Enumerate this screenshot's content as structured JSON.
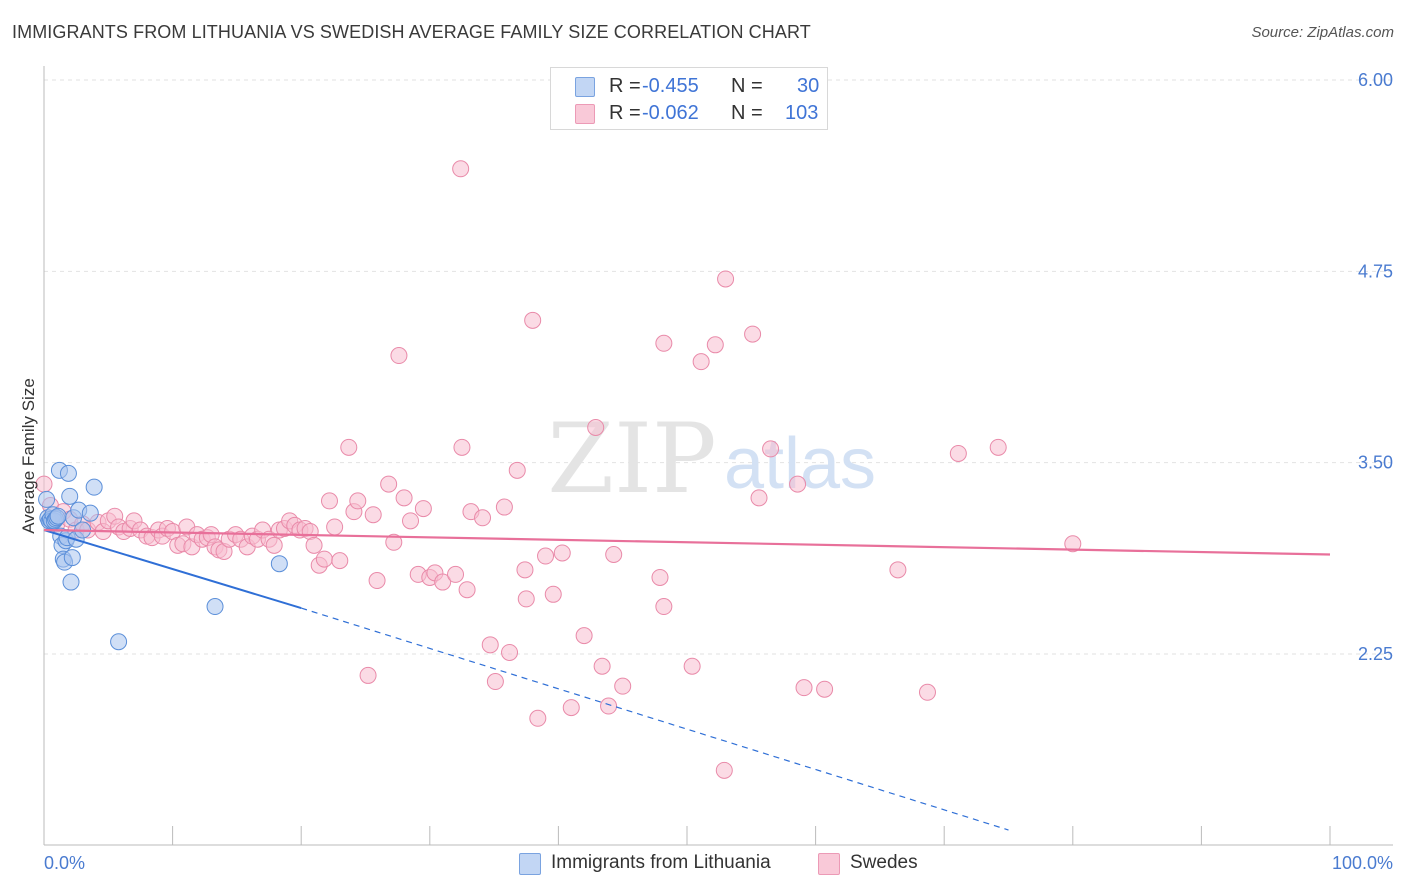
{
  "title": "IMMIGRANTS FROM LITHUANIA VS SWEDISH AVERAGE FAMILY SIZE CORRELATION CHART",
  "source": "Source: ZipAtlas.com",
  "watermark": {
    "zip": "ZIP",
    "atlas": "atlas"
  },
  "legend": {
    "series1": {
      "r_label": "R =",
      "r_value": "-0.455",
      "n_label": "N =",
      "n_value": "30"
    },
    "series2": {
      "r_label": "R =",
      "r_value": "-0.062",
      "n_label": "N =",
      "n_value": "103"
    }
  },
  "colors": {
    "blue_fill": "#a9c4ee",
    "blue_stroke": "#5b8fd9",
    "blue_line": "#2f6fd6",
    "pink_fill": "#f7bdd0",
    "pink_stroke": "#e98aa9",
    "pink_line": "#e8709a",
    "grid": "#e2e2e2",
    "axis_text": "#4a7bd0"
  },
  "chart_data": {
    "type": "scatter",
    "title": "IMMIGRANTS FROM LITHUANIA VS SWEDISH AVERAGE FAMILY SIZE CORRELATION CHART",
    "xlabel": "",
    "ylabel": "Average Family Size",
    "x_tick_labels": [
      "0.0%",
      "100.0%"
    ],
    "y_ticks": [
      2.25,
      3.5,
      4.75,
      6.0
    ],
    "y_tick_labels": [
      "2.25",
      "3.50",
      "4.75",
      "6.00"
    ],
    "xlim": [
      0,
      100
    ],
    "ylim": [
      1.1,
      6.2
    ],
    "grid": true,
    "legend_position": "top-center",
    "series": [
      {
        "name": "Immigrants from Lithuania",
        "r": -0.455,
        "n": 30,
        "trend": {
          "x0": 0,
          "y0": 3.06,
          "x1": 20,
          "y1": 2.55,
          "dash_to_x": 75,
          "dash_to_y": 1.1
        },
        "points": [
          [
            0.2,
            3.26
          ],
          [
            0.3,
            3.14
          ],
          [
            0.4,
            3.12
          ],
          [
            0.5,
            3.13
          ],
          [
            0.6,
            3.12
          ],
          [
            0.7,
            3.16
          ],
          [
            0.8,
            3.12
          ],
          [
            0.9,
            3.13
          ],
          [
            1.0,
            3.14
          ],
          [
            1.1,
            3.15
          ],
          [
            1.2,
            3.45
          ],
          [
            1.3,
            3.02
          ],
          [
            1.4,
            2.96
          ],
          [
            1.5,
            2.87
          ],
          [
            1.6,
            2.85
          ],
          [
            1.7,
            2.99
          ],
          [
            1.8,
            3.01
          ],
          [
            1.9,
            3.43
          ],
          [
            2.0,
            3.28
          ],
          [
            2.1,
            2.72
          ],
          [
            2.2,
            2.88
          ],
          [
            2.3,
            3.14
          ],
          [
            2.5,
            3.0
          ],
          [
            2.7,
            3.19
          ],
          [
            3.0,
            3.06
          ],
          [
            3.6,
            3.17
          ],
          [
            3.9,
            3.34
          ],
          [
            5.8,
            2.33
          ],
          [
            13.3,
            2.56
          ],
          [
            18.3,
            2.84
          ]
        ]
      },
      {
        "name": "Swedes",
        "r": -0.062,
        "n": 103,
        "trend": {
          "x0": 0,
          "y0": 3.06,
          "x1": 100,
          "y1": 2.9
        },
        "points": [
          [
            0.0,
            3.36
          ],
          [
            0.5,
            3.22
          ],
          [
            1.0,
            3.1
          ],
          [
            1.5,
            3.18
          ],
          [
            2.0,
            3.13
          ],
          [
            2.5,
            3.06
          ],
          [
            3.0,
            3.1
          ],
          [
            3.4,
            3.06
          ],
          [
            4.2,
            3.11
          ],
          [
            4.6,
            3.05
          ],
          [
            5.0,
            3.12
          ],
          [
            5.5,
            3.15
          ],
          [
            5.8,
            3.08
          ],
          [
            6.2,
            3.05
          ],
          [
            6.7,
            3.07
          ],
          [
            7.0,
            3.12
          ],
          [
            7.5,
            3.06
          ],
          [
            8.0,
            3.02
          ],
          [
            8.4,
            3.01
          ],
          [
            8.9,
            3.06
          ],
          [
            9.2,
            3.02
          ],
          [
            9.6,
            3.07
          ],
          [
            10.0,
            3.05
          ],
          [
            10.4,
            2.96
          ],
          [
            10.8,
            2.97
          ],
          [
            11.1,
            3.08
          ],
          [
            11.5,
            2.95
          ],
          [
            11.9,
            3.03
          ],
          [
            12.3,
            3.0
          ],
          [
            12.7,
            3.01
          ],
          [
            13.0,
            3.03
          ],
          [
            13.3,
            2.95
          ],
          [
            13.6,
            2.93
          ],
          [
            14.0,
            2.92
          ],
          [
            14.4,
            3.0
          ],
          [
            14.9,
            3.03
          ],
          [
            15.3,
            3.0
          ],
          [
            15.8,
            2.95
          ],
          [
            16.2,
            3.02
          ],
          [
            16.6,
            3.0
          ],
          [
            17.0,
            3.06
          ],
          [
            17.5,
            3.0
          ],
          [
            17.9,
            2.96
          ],
          [
            18.3,
            3.06
          ],
          [
            18.7,
            3.07
          ],
          [
            19.1,
            3.12
          ],
          [
            19.5,
            3.09
          ],
          [
            19.9,
            3.06
          ],
          [
            20.3,
            3.07
          ],
          [
            20.7,
            3.05
          ],
          [
            21.0,
            2.96
          ],
          [
            21.4,
            2.83
          ],
          [
            21.8,
            2.87
          ],
          [
            22.2,
            3.25
          ],
          [
            22.6,
            3.08
          ],
          [
            23.0,
            2.86
          ],
          [
            23.7,
            3.6
          ],
          [
            24.1,
            3.18
          ],
          [
            24.4,
            3.25
          ],
          [
            25.2,
            2.11
          ],
          [
            25.6,
            3.16
          ],
          [
            25.9,
            2.73
          ],
          [
            26.8,
            3.36
          ],
          [
            27.2,
            2.98
          ],
          [
            27.6,
            4.2
          ],
          [
            28.0,
            3.27
          ],
          [
            28.5,
            3.12
          ],
          [
            29.1,
            2.77
          ],
          [
            29.5,
            3.2
          ],
          [
            30.0,
            2.75
          ],
          [
            30.4,
            2.78
          ],
          [
            31.0,
            2.72
          ],
          [
            32.0,
            2.77
          ],
          [
            32.5,
            3.6
          ],
          [
            32.9,
            2.67
          ],
          [
            33.2,
            3.18
          ],
          [
            34.1,
            3.14
          ],
          [
            34.7,
            2.31
          ],
          [
            35.1,
            2.07
          ],
          [
            35.8,
            3.21
          ],
          [
            36.2,
            2.26
          ],
          [
            36.8,
            3.45
          ],
          [
            37.4,
            2.8
          ],
          [
            38.0,
            4.43
          ],
          [
            38.4,
            1.83
          ],
          [
            39.0,
            2.89
          ],
          [
            39.6,
            2.64
          ],
          [
            40.3,
            2.91
          ],
          [
            42.0,
            2.37
          ],
          [
            43.4,
            2.17
          ],
          [
            45.0,
            2.04
          ],
          [
            47.9,
            2.75
          ],
          [
            50.4,
            2.17
          ],
          [
            52.2,
            4.27
          ],
          [
            53.0,
            4.7
          ],
          [
            55.1,
            4.34
          ],
          [
            56.5,
            3.59
          ],
          [
            58.6,
            3.36
          ],
          [
            59.1,
            2.03
          ],
          [
            60.7,
            2.02
          ],
          [
            66.4,
            2.8
          ],
          [
            68.7,
            2.0
          ],
          [
            80.0,
            2.97
          ]
        ],
        "extra_points": [
          [
            32.4,
            5.42
          ],
          [
            41.0,
            1.9
          ],
          [
            48.2,
            4.28
          ],
          [
            43.9,
            1.91
          ],
          [
            51.1,
            4.16
          ],
          [
            42.9,
            3.73
          ],
          [
            52.9,
            1.49
          ],
          [
            55.6,
            3.27
          ],
          [
            71.1,
            3.56
          ],
          [
            74.2,
            3.6
          ],
          [
            37.5,
            2.61
          ],
          [
            44.3,
            2.9
          ],
          [
            48.2,
            2.56
          ]
        ]
      }
    ]
  },
  "bottom_legend": {
    "item1": "Immigrants from Lithuania",
    "item2": "Swedes"
  }
}
